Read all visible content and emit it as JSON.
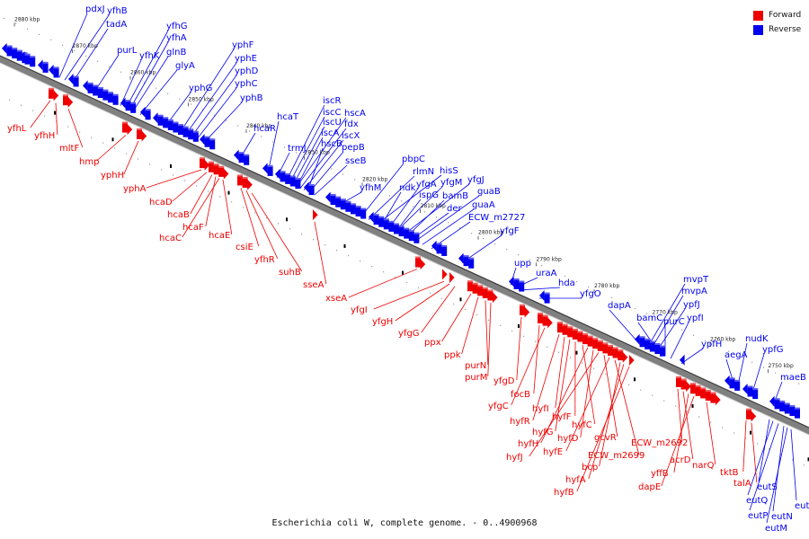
{
  "caption": "Escherichia coli W, complete genome. - 0..4900968",
  "legend": {
    "forward": {
      "label": "Forward",
      "color": "#ee0000"
    },
    "reverse": {
      "label": "Reverse",
      "color": "#0000ee"
    }
  },
  "kbp_ticks": [
    {
      "label": "2880 kbp"
    },
    {
      "label": "2870 kbp"
    },
    {
      "label": "2860 kbp"
    },
    {
      "label": "2850 kbp"
    },
    {
      "label": "2840 kbp"
    },
    {
      "label": "2830 kbp"
    },
    {
      "label": "2820 kbp"
    },
    {
      "label": "2810 kbp"
    },
    {
      "label": "2800 kbp"
    },
    {
      "label": "2790 kbp"
    },
    {
      "label": "2780 kbp"
    },
    {
      "label": "2770 kbp"
    },
    {
      "label": "2760 kbp"
    },
    {
      "label": "2750 kbp"
    }
  ],
  "genes_reverse": [
    {
      "name": "pdxJ"
    },
    {
      "name": "yfhB"
    },
    {
      "name": "tadA"
    },
    {
      "name": "purL"
    },
    {
      "name": "yfhG"
    },
    {
      "name": "yfhA"
    },
    {
      "name": "yfhK"
    },
    {
      "name": "glnB"
    },
    {
      "name": "glyA"
    },
    {
      "name": "yphF"
    },
    {
      "name": "yphE"
    },
    {
      "name": "yphD"
    },
    {
      "name": "yphC"
    },
    {
      "name": "yphG"
    },
    {
      "name": "yphB"
    },
    {
      "name": "hcaR"
    },
    {
      "name": "hcaT"
    },
    {
      "name": "iscR"
    },
    {
      "name": "iscC"
    },
    {
      "name": "hscA"
    },
    {
      "name": "iscU"
    },
    {
      "name": "fdx"
    },
    {
      "name": "iscA"
    },
    {
      "name": "iscX"
    },
    {
      "name": "trmJ"
    },
    {
      "name": "hscB"
    },
    {
      "name": "pepB"
    },
    {
      "name": "sseB"
    },
    {
      "name": "pbpC"
    },
    {
      "name": "rlmN"
    },
    {
      "name": "hisS"
    },
    {
      "name": "yfhM"
    },
    {
      "name": "ndk"
    },
    {
      "name": "yfgA"
    },
    {
      "name": "yfgM"
    },
    {
      "name": "yfgJ"
    },
    {
      "name": "ispG"
    },
    {
      "name": "bamB"
    },
    {
      "name": "guaB"
    },
    {
      "name": "der"
    },
    {
      "name": "guaA"
    },
    {
      "name": "ECW_m2727"
    },
    {
      "name": "yfgF"
    },
    {
      "name": "upp"
    },
    {
      "name": "uraA"
    },
    {
      "name": "hda"
    },
    {
      "name": "yfgO"
    },
    {
      "name": "mvpT"
    },
    {
      "name": "mvpA"
    },
    {
      "name": "dapA"
    },
    {
      "name": "ypfJ"
    },
    {
      "name": "bamC"
    },
    {
      "name": "purC"
    },
    {
      "name": "ypfI"
    },
    {
      "name": "nudK"
    },
    {
      "name": "ypfH"
    },
    {
      "name": "aegA"
    },
    {
      "name": "ypfG"
    },
    {
      "name": "maeB"
    },
    {
      "name": "eutS"
    },
    {
      "name": "eutE"
    },
    {
      "name": "eutQ"
    },
    {
      "name": "eutP"
    },
    {
      "name": "eutN"
    },
    {
      "name": "eutM"
    }
  ],
  "genes_forward": [
    {
      "name": "yfhL"
    },
    {
      "name": "yfhH"
    },
    {
      "name": "mltF"
    },
    {
      "name": "hmp"
    },
    {
      "name": "yphH"
    },
    {
      "name": "yphA"
    },
    {
      "name": "hcaD"
    },
    {
      "name": "hcaB"
    },
    {
      "name": "hcaF"
    },
    {
      "name": "hcaC"
    },
    {
      "name": "hcaE"
    },
    {
      "name": "csiE"
    },
    {
      "name": "yfhR"
    },
    {
      "name": "suhB"
    },
    {
      "name": "sseA"
    },
    {
      "name": "xseA"
    },
    {
      "name": "yfgI"
    },
    {
      "name": "yfgH"
    },
    {
      "name": "yfgG"
    },
    {
      "name": "ppx"
    },
    {
      "name": "ppk"
    },
    {
      "name": "purN"
    },
    {
      "name": "purM"
    },
    {
      "name": "yfgD"
    },
    {
      "name": "focB"
    },
    {
      "name": "yfgC"
    },
    {
      "name": "hyfR"
    },
    {
      "name": "hyfI"
    },
    {
      "name": "hyfG"
    },
    {
      "name": "hyfF"
    },
    {
      "name": "hyfC"
    },
    {
      "name": "hyfH"
    },
    {
      "name": "hyfD"
    },
    {
      "name": "gcvR"
    },
    {
      "name": "hyfJ"
    },
    {
      "name": "hyfE"
    },
    {
      "name": "ECW_m2699"
    },
    {
      "name": "bcp"
    },
    {
      "name": "hyfA"
    },
    {
      "name": "hyfB"
    },
    {
      "name": "ECW_m2692"
    },
    {
      "name": "acrD"
    },
    {
      "name": "yffB"
    },
    {
      "name": "dapE"
    },
    {
      "name": "narQ"
    },
    {
      "name": "tktB"
    },
    {
      "name": "talA"
    }
  ]
}
